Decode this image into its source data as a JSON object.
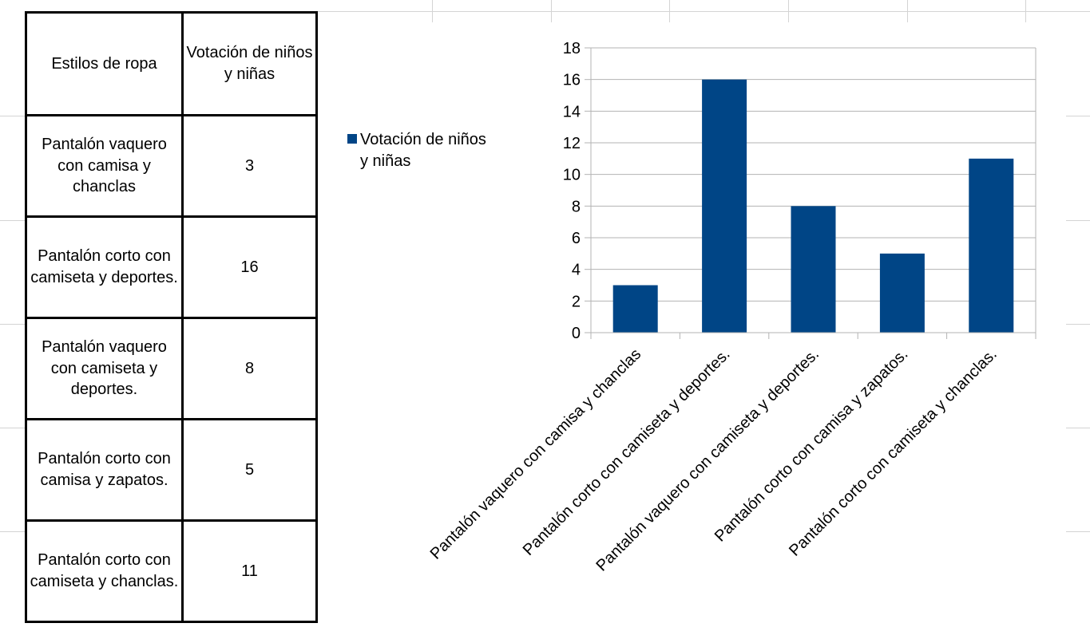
{
  "table": {
    "headers": [
      "Estilos de ropa",
      "Votación de niños y niñas"
    ],
    "rows": [
      [
        "Pantalón vaquero con camisa y chanclas",
        "3"
      ],
      [
        "Pantalón corto con camiseta y deportes.",
        "16"
      ],
      [
        "Pantalón vaquero con camiseta y deportes.",
        "8"
      ],
      [
        "Pantalón corto con camisa y zapatos.",
        "5"
      ],
      [
        "Pantalón corto con camiseta y chanclas.",
        "11"
      ]
    ]
  },
  "legend": {
    "label": "Votación de niños y niñas"
  },
  "colors": {
    "bar": "#004586",
    "grid": "#b3b3b3",
    "cell_grid": "#d4d4d4"
  },
  "chart_data": {
    "type": "bar",
    "categories": [
      "Pantalón vaquero con camisa y chanclas",
      "Pantalón corto con camiseta y deportes.",
      "Pantalón vaquero con camiseta y deportes.",
      "Pantalón corto con camisa y zapatos.",
      "Pantalón corto con camiseta y chanclas."
    ],
    "series": [
      {
        "name": "Votación de niños y niñas",
        "values": [
          3,
          16,
          8,
          5,
          11
        ]
      }
    ],
    "yticks": [
      "0",
      "2",
      "4",
      "6",
      "8",
      "10",
      "12",
      "14",
      "16",
      "18"
    ],
    "ylim": [
      0,
      18
    ],
    "grid": true,
    "legend_position": "left"
  }
}
